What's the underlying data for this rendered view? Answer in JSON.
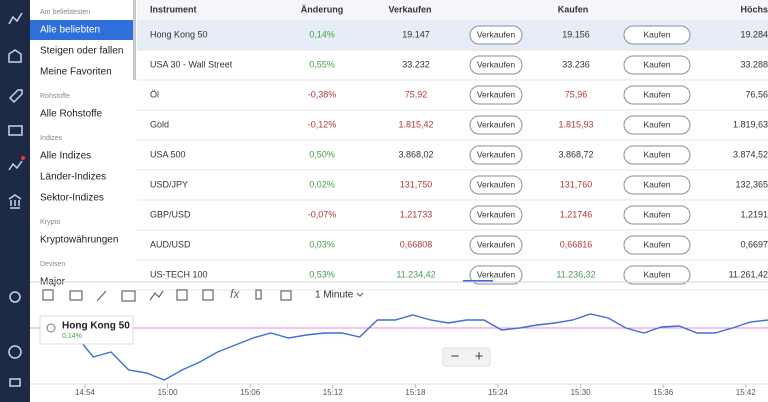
{
  "sidebar": {
    "groups": [
      {
        "header": "Am beliebtesten",
        "items": [
          "Alle beliebten",
          "Steigen oder fallen",
          "Meine Favoriten"
        ]
      },
      {
        "header": "Rohstoffe",
        "items": [
          "Alle Rohstoffe"
        ]
      },
      {
        "header": "Indizes",
        "items": [
          "Alle Indizes",
          "Länder-Indizes",
          "Sektor-Indizes"
        ]
      },
      {
        "header": "Krypto",
        "items": [
          "Kryptowährungen"
        ]
      },
      {
        "header": "Devisen",
        "items": [
          "Major"
        ]
      }
    ]
  },
  "table": {
    "columns": [
      "Instrument",
      "Änderung",
      "Verkaufen",
      "Kaufen",
      "Höchs"
    ],
    "buttons": {
      "sell": "Verkaufen",
      "buy": "Kaufen"
    },
    "colors": {
      "up": "#43a047",
      "down": "#b23a3a",
      "neutral": "#333333"
    },
    "rows": [
      {
        "instrument": "Hong Kong 50",
        "change": "0,14%",
        "change_trend": "up",
        "sell": "19.147",
        "buy": "19.156",
        "price_trend": "neutral",
        "high": "19.284"
      },
      {
        "instrument": "USA 30 - Wall Street",
        "change": "0,55%",
        "change_trend": "up",
        "sell": "33.232",
        "buy": "33.236",
        "price_trend": "neutral",
        "high": "33.288"
      },
      {
        "instrument": "Öl",
        "change": "-0,38%",
        "change_trend": "down",
        "sell": "75,92",
        "buy": "75,96",
        "price_trend": "down",
        "high": "76,56"
      },
      {
        "instrument": "Gold",
        "change": "-0,12%",
        "change_trend": "down",
        "sell": "1.815,42",
        "buy": "1.815,93",
        "price_trend": "down",
        "high": "1.819,63"
      },
      {
        "instrument": "USA 500",
        "change": "0,50%",
        "change_trend": "up",
        "sell": "3.868,02",
        "buy": "3.868,72",
        "price_trend": "neutral",
        "high": "3.874,52"
      },
      {
        "instrument": "USD/JPY",
        "change": "0,02%",
        "change_trend": "up",
        "sell": "131,750",
        "buy": "131,760",
        "price_trend": "down",
        "high": "132,365"
      },
      {
        "instrument": "GBP/USD",
        "change": "-0,07%",
        "change_trend": "down",
        "sell": "1,21733",
        "buy": "1,21746",
        "price_trend": "down",
        "high": "1,2191"
      },
      {
        "instrument": "AUD/USD",
        "change": "0,03%",
        "change_trend": "up",
        "sell": "0,66808",
        "buy": "0,66816",
        "price_trend": "down",
        "high": "0,6697"
      },
      {
        "instrument": "US-TECH 100",
        "change": "0,53%",
        "change_trend": "up",
        "sell": "11.234,42",
        "buy": "11.236,32",
        "price_trend": "up",
        "high": "11.261,42"
      }
    ]
  },
  "chart_panel": {
    "interval": "1 Minute",
    "info": {
      "name": "Hong Kong 50",
      "change": "0,14%"
    },
    "zoom_out": "−",
    "zoom_in": "+",
    "chart_data": {
      "type": "line",
      "color": "#3a6fd8",
      "reference_line": 19147,
      "reference_color": "#e58be0",
      "ylim": [
        19118.5,
        19156
      ],
      "xticks": [
        "14:54",
        "15:00",
        "15:06",
        "15:12",
        "15:18",
        "15:24",
        "15:30",
        "15:36",
        "15:42"
      ],
      "values": [
        19146,
        19151,
        19143.5,
        19132.5,
        19135,
        19126,
        19124.5,
        19121,
        19126,
        19130,
        19135,
        19138.5,
        19142,
        19144.5,
        19142,
        19143.5,
        19144.5,
        19144.5,
        19142.5,
        19151,
        19151,
        19153.5,
        19151,
        19149.5,
        19151,
        19151,
        19146,
        19147,
        19148.5,
        19149.5,
        19151,
        19154,
        19152,
        19147,
        19144.5,
        19147.5,
        19148,
        19144.5,
        19144.5,
        19147,
        19150,
        19151
      ]
    }
  }
}
